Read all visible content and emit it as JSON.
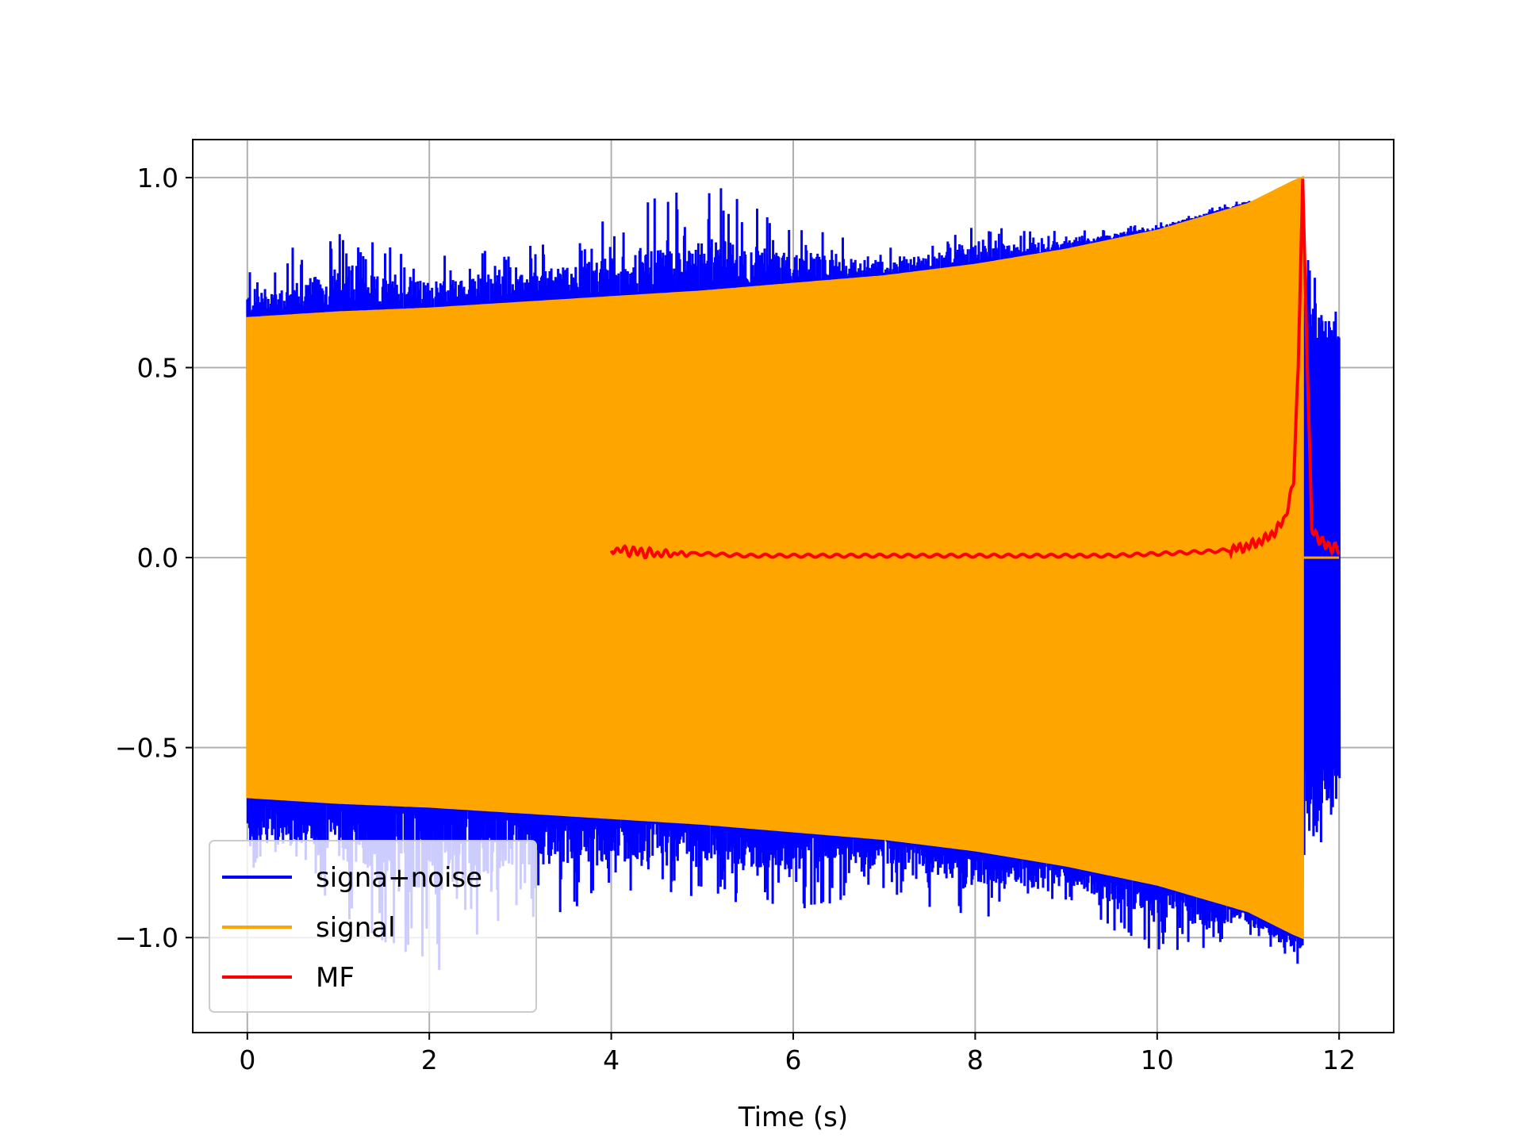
{
  "chart_data": {
    "type": "line",
    "title": "",
    "xlabel": "Time (s)",
    "ylabel": "",
    "xlim": [
      -0.6,
      12.6
    ],
    "ylim": [
      -1.25,
      1.1
    ],
    "xticks": [
      0,
      2,
      4,
      6,
      8,
      10,
      12
    ],
    "yticks": [
      1.0,
      0.5,
      0.0,
      -0.5,
      -1.0
    ],
    "xtick_labels": [
      "0",
      "2",
      "4",
      "6",
      "8",
      "10",
      "12"
    ],
    "ytick_labels": [
      "1.0",
      "0.5",
      "0.0",
      "−0.5",
      "−1.0"
    ],
    "grid": true,
    "legend_position": "lower-left",
    "series": [
      {
        "name": "signa+noise",
        "color": "#0000ff",
        "envelope_description_points": {
          "t": [
            0,
            1,
            2,
            3,
            4,
            5,
            6,
            7,
            8,
            9,
            10,
            11,
            11.6,
            12
          ],
          "upper": [
            0.78,
            0.86,
            0.8,
            0.82,
            0.9,
            1.0,
            0.88,
            0.82,
            0.87,
            0.86,
            0.88,
            0.95,
            0.85,
            0.65
          ],
          "lower": [
            -0.85,
            -0.95,
            -1.13,
            -0.95,
            -0.92,
            -0.9,
            -0.93,
            -0.88,
            -0.96,
            -0.9,
            -1.07,
            -1.0,
            -1.08,
            -0.6
          ]
        }
      },
      {
        "name": "signal",
        "color": "#ffa500",
        "envelope": {
          "t": [
            0,
            1,
            2,
            3,
            4,
            5,
            6,
            7,
            8,
            9,
            10,
            11,
            11.5,
            11.6
          ],
          "amplitude": [
            0.63,
            0.645,
            0.655,
            0.67,
            0.685,
            0.7,
            0.72,
            0.74,
            0.77,
            0.81,
            0.86,
            0.93,
            0.99,
            1.0
          ]
        }
      },
      {
        "name": "MF",
        "color": "#ff0000",
        "x": [
          4.0,
          4.1,
          4.5,
          5.0,
          5.5,
          6.0,
          6.5,
          7.0,
          7.5,
          8.0,
          8.5,
          9.0,
          9.5,
          10.0,
          10.5,
          10.8,
          11.0,
          11.2,
          11.3,
          11.4,
          11.5,
          11.55,
          11.6,
          11.65,
          11.7,
          11.8,
          11.9,
          12.0
        ],
        "y": [
          0.02,
          0.02,
          0.01,
          0.01,
          0.005,
          0.005,
          0.005,
          0.005,
          0.005,
          0.005,
          0.005,
          0.005,
          0.005,
          0.01,
          0.015,
          0.02,
          0.03,
          0.05,
          0.07,
          0.1,
          0.2,
          0.5,
          1.0,
          0.5,
          0.08,
          0.04,
          0.03,
          0.02
        ]
      }
    ]
  }
}
